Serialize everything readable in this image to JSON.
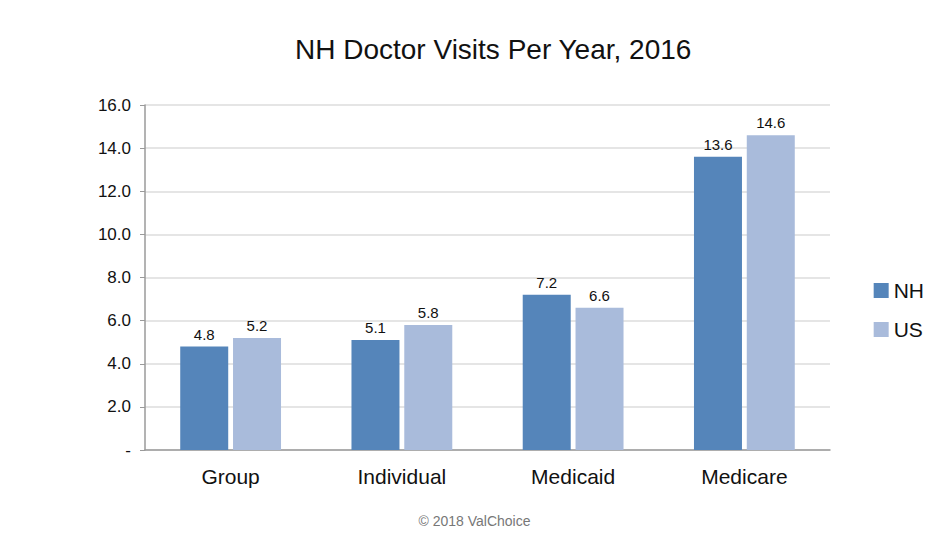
{
  "chart_data": {
    "type": "bar",
    "title": "NH Doctor Visits Per Year, 2016",
    "categories": [
      "Group",
      "Individual",
      "Medicaid",
      "Medicare"
    ],
    "series": [
      {
        "name": "NH",
        "color": "#5585ba",
        "values": [
          4.8,
          5.1,
          7.2,
          13.6
        ]
      },
      {
        "name": "US",
        "color": "#a9bbdb",
        "values": [
          5.2,
          5.8,
          6.6,
          14.6
        ]
      }
    ],
    "ylim": [
      0,
      16
    ],
    "yticks": [
      {
        "value": 0,
        "label": "-"
      },
      {
        "value": 2,
        "label": "2.0"
      },
      {
        "value": 4,
        "label": "4.0"
      },
      {
        "value": 6,
        "label": "6.0"
      },
      {
        "value": 8,
        "label": "8.0"
      },
      {
        "value": 10,
        "label": "10.0"
      },
      {
        "value": 12,
        "label": "12.0"
      },
      {
        "value": 14,
        "label": "14.0"
      },
      {
        "value": 16,
        "label": "16.0"
      }
    ],
    "grid": true,
    "legend": "right",
    "data_labels": true,
    "annotations": [
      "© 2018 ValChoice"
    ]
  }
}
